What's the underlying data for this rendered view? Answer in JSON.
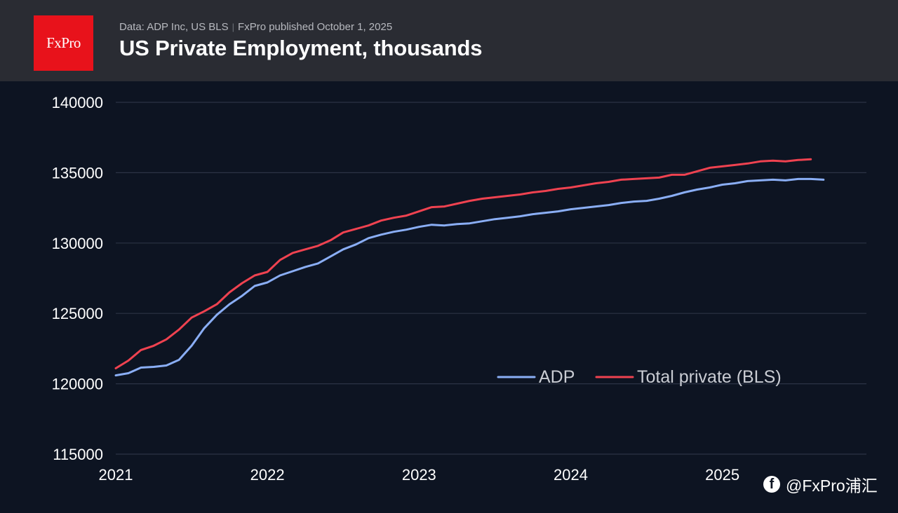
{
  "header": {
    "logo_text": "FxPro",
    "source": "Data: ADP Inc, US BLS",
    "separator": "|",
    "published": "FxPro published October 1, 2025",
    "title": "US Private Employment, thousands"
  },
  "watermark": {
    "icon": "facebook-icon",
    "text": "@FxPro浦汇"
  },
  "colors": {
    "background": "#0d1422",
    "header": "#2a2c33",
    "logo": "#e8121b",
    "adp": "#8aaef5",
    "bls": "#ef4250",
    "grid": "#2c3345"
  },
  "chart_data": {
    "type": "line",
    "title": "US Private Employment, thousands",
    "xlabel": "",
    "ylabel": "",
    "xlim": [
      2021.0,
      2025.95
    ],
    "ylim": [
      115000,
      140000
    ],
    "x_ticks": [
      "2021",
      "2022",
      "2023",
      "2024",
      "2025"
    ],
    "y_ticks": [
      "115000",
      "120000",
      "125000",
      "130000",
      "135000",
      "140000"
    ],
    "grid": "horizontal",
    "legend_position": "lower-right",
    "series": [
      {
        "name": "ADP",
        "color": "#8aaef5",
        "x": [
          "2021-01",
          "2021-02",
          "2021-03",
          "2021-04",
          "2021-05",
          "2021-06",
          "2021-07",
          "2021-08",
          "2021-09",
          "2021-10",
          "2021-11",
          "2021-12",
          "2022-01",
          "2022-02",
          "2022-03",
          "2022-04",
          "2022-05",
          "2022-06",
          "2022-07",
          "2022-08",
          "2022-09",
          "2022-10",
          "2022-11",
          "2022-12",
          "2023-01",
          "2023-02",
          "2023-03",
          "2023-04",
          "2023-05",
          "2023-06",
          "2023-07",
          "2023-08",
          "2023-09",
          "2023-10",
          "2023-11",
          "2023-12",
          "2024-01",
          "2024-02",
          "2024-03",
          "2024-04",
          "2024-05",
          "2024-06",
          "2024-07",
          "2024-08",
          "2024-09",
          "2024-10",
          "2024-11",
          "2024-12",
          "2025-01",
          "2025-02",
          "2025-03",
          "2025-04",
          "2025-05",
          "2025-06",
          "2025-07",
          "2025-08",
          "2025-09"
        ],
        "values": [
          120600,
          120750,
          121150,
          121200,
          121300,
          121700,
          122700,
          123950,
          124900,
          125650,
          126250,
          126950,
          127200,
          127700,
          128000,
          128300,
          128550,
          129050,
          129550,
          129900,
          130350,
          130600,
          130800,
          130950,
          131150,
          131300,
          131250,
          131350,
          131400,
          131550,
          131700,
          131800,
          131900,
          132050,
          132150,
          132250,
          132400,
          132500,
          132600,
          132700,
          132850,
          132950,
          133000,
          133150,
          133350,
          133600,
          133800,
          133950,
          134150,
          134250,
          134400,
          134450,
          134500,
          134450,
          134550,
          134550,
          134500
        ]
      },
      {
        "name": "Total private (BLS)",
        "color": "#ef4250",
        "x": [
          "2021-01",
          "2021-02",
          "2021-03",
          "2021-04",
          "2021-05",
          "2021-06",
          "2021-07",
          "2021-08",
          "2021-09",
          "2021-10",
          "2021-11",
          "2021-12",
          "2022-01",
          "2022-02",
          "2022-03",
          "2022-04",
          "2022-05",
          "2022-06",
          "2022-07",
          "2022-08",
          "2022-09",
          "2022-10",
          "2022-11",
          "2022-12",
          "2023-01",
          "2023-02",
          "2023-03",
          "2023-04",
          "2023-05",
          "2023-06",
          "2023-07",
          "2023-08",
          "2023-09",
          "2023-10",
          "2023-11",
          "2023-12",
          "2024-01",
          "2024-02",
          "2024-03",
          "2024-04",
          "2024-05",
          "2024-06",
          "2024-07",
          "2024-08",
          "2024-09",
          "2024-10",
          "2024-11",
          "2024-12",
          "2025-01",
          "2025-02",
          "2025-03",
          "2025-04",
          "2025-05",
          "2025-06",
          "2025-07",
          "2025-08"
        ],
        "values": [
          121100,
          121650,
          122400,
          122700,
          123150,
          123850,
          124700,
          125150,
          125650,
          126500,
          127150,
          127700,
          127950,
          128800,
          129300,
          129550,
          129800,
          130200,
          130750,
          131000,
          131250,
          131600,
          131800,
          131950,
          132250,
          132550,
          132600,
          132800,
          133000,
          133150,
          133250,
          133350,
          133450,
          133600,
          133700,
          133850,
          133950,
          134100,
          134250,
          134350,
          134500,
          134550,
          134600,
          134650,
          134850,
          134850,
          135100,
          135350,
          135450,
          135550,
          135650,
          135800,
          135850,
          135800,
          135900,
          135950
        ]
      }
    ]
  }
}
